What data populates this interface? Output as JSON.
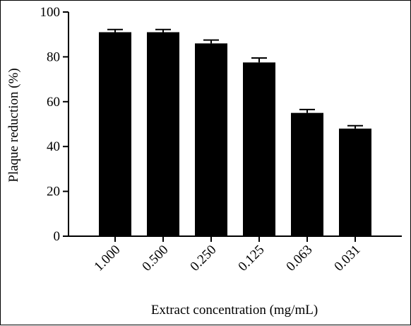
{
  "chart_data": {
    "type": "bar",
    "title": "",
    "xlabel": "Extract concentration (mg/mL)",
    "ylabel": "Plaque reduction (%)",
    "categories": [
      "1.000",
      "0.500",
      "0.250",
      "0.125",
      "0.063",
      "0.031"
    ],
    "values": [
      91,
      91,
      86,
      77.5,
      55,
      48
    ],
    "errors": [
      1.2,
      1.2,
      1.5,
      2.0,
      1.5,
      1.3
    ],
    "ylim": [
      0,
      100
    ],
    "yticks": [
      0,
      20,
      40,
      60,
      80,
      100
    ],
    "grid": false,
    "legend": "none",
    "bar_color": "#000000"
  }
}
